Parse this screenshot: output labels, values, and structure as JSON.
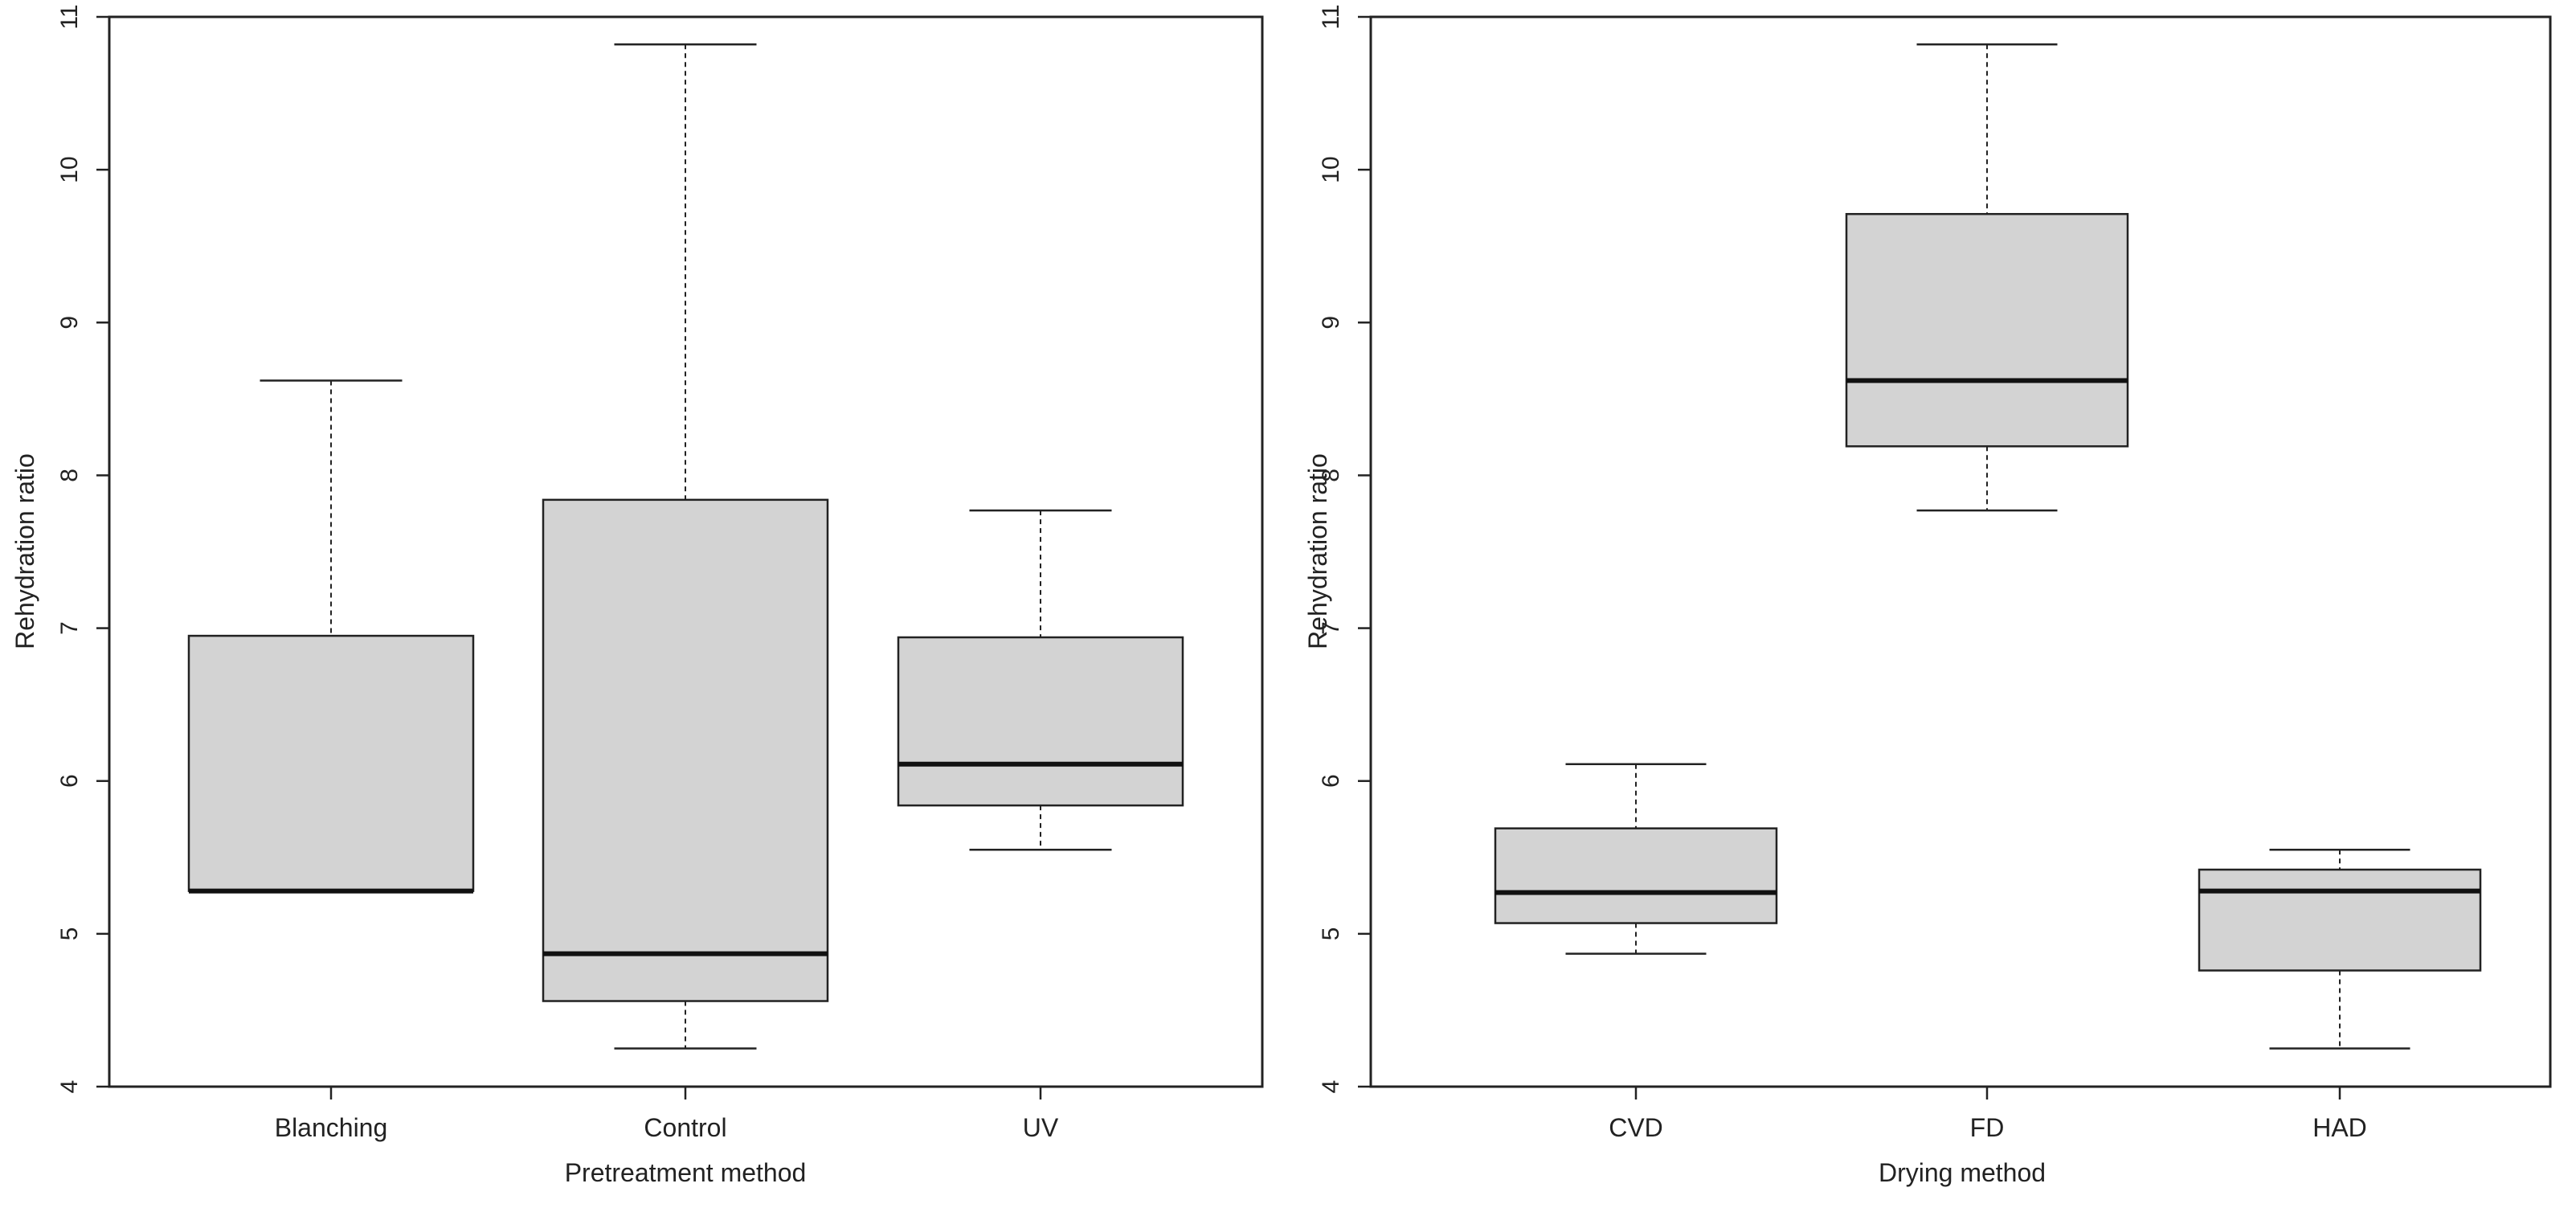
{
  "chart_data": [
    {
      "type": "box",
      "title": "",
      "xlabel": "Pretreatment method",
      "ylabel": "Rehydration ratio",
      "ylim": [
        4,
        11
      ],
      "yticks": [
        4,
        5,
        6,
        7,
        8,
        9,
        10,
        11
      ],
      "grid": false,
      "categories": [
        "Blanching",
        "Control",
        "UV"
      ],
      "boxes": [
        {
          "category": "Blanching",
          "min": 5.28,
          "q1": 5.28,
          "median": 5.28,
          "q3": 6.95,
          "max": 8.62
        },
        {
          "category": "Control",
          "min": 4.25,
          "q1": 4.56,
          "median": 4.87,
          "q3": 7.84,
          "max": 10.82
        },
        {
          "category": "UV",
          "min": 5.55,
          "q1": 5.84,
          "median": 6.11,
          "q3": 6.94,
          "max": 7.77
        }
      ],
      "colors": {
        "box_fill": "#d3d3d3",
        "stroke": "#222222"
      }
    },
    {
      "type": "box",
      "title": "",
      "xlabel": "Drying method",
      "ylabel": "Rehydration ratio",
      "ylim": [
        4,
        11
      ],
      "yticks": [
        4,
        5,
        6,
        7,
        8,
        9,
        10,
        11
      ],
      "grid": false,
      "categories": [
        "CVD",
        "FD",
        "HAD"
      ],
      "boxes": [
        {
          "category": "CVD",
          "min": 4.87,
          "q1": 5.07,
          "median": 5.27,
          "q3": 5.69,
          "max": 6.11
        },
        {
          "category": "FD",
          "min": 7.77,
          "q1": 8.19,
          "median": 8.62,
          "q3": 9.71,
          "max": 10.82
        },
        {
          "category": "HAD",
          "min": 4.25,
          "q1": 4.76,
          "median": 5.28,
          "q3": 5.42,
          "max": 5.55
        }
      ],
      "colors": {
        "box_fill": "#d3d3d3",
        "stroke": "#222222"
      }
    }
  ]
}
